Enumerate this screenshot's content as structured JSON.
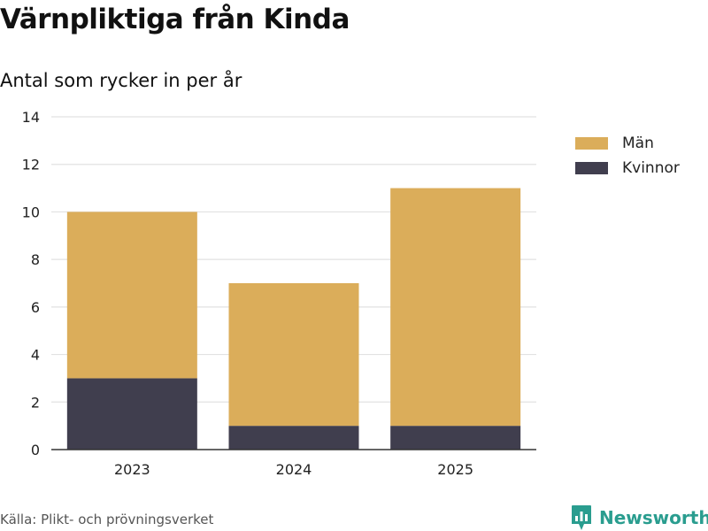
{
  "header": {
    "title": "Värnpliktiga från Kinda",
    "subtitle": "Antal som rycker in per år"
  },
  "legend": {
    "items": [
      {
        "label": "Män",
        "color": "#dbad5a"
      },
      {
        "label": "Kvinnor",
        "color": "#403e4e"
      }
    ]
  },
  "footer": {
    "source": "Källa: Plikt- och prövningsverket",
    "brand": "Newsworthy",
    "brand_color": "#2a9d8f",
    "brand_icon": "bar-chart-badge-icon"
  },
  "chart_data": {
    "type": "bar",
    "stacked": true,
    "title": "Värnpliktiga från Kinda",
    "subtitle": "Antal som rycker in per år",
    "xlabel": "",
    "ylabel": "",
    "categories": [
      "2023",
      "2024",
      "2025"
    ],
    "series": [
      {
        "name": "Kvinnor",
        "color": "#403e4e",
        "values": [
          3,
          1,
          1
        ]
      },
      {
        "name": "Män",
        "color": "#dbad5a",
        "values": [
          7,
          6,
          10
        ]
      }
    ],
    "ylim": [
      0,
      14
    ],
    "yticks": [
      0,
      2,
      4,
      6,
      8,
      10,
      12,
      14
    ],
    "grid": true,
    "legend_position": "top-right"
  }
}
